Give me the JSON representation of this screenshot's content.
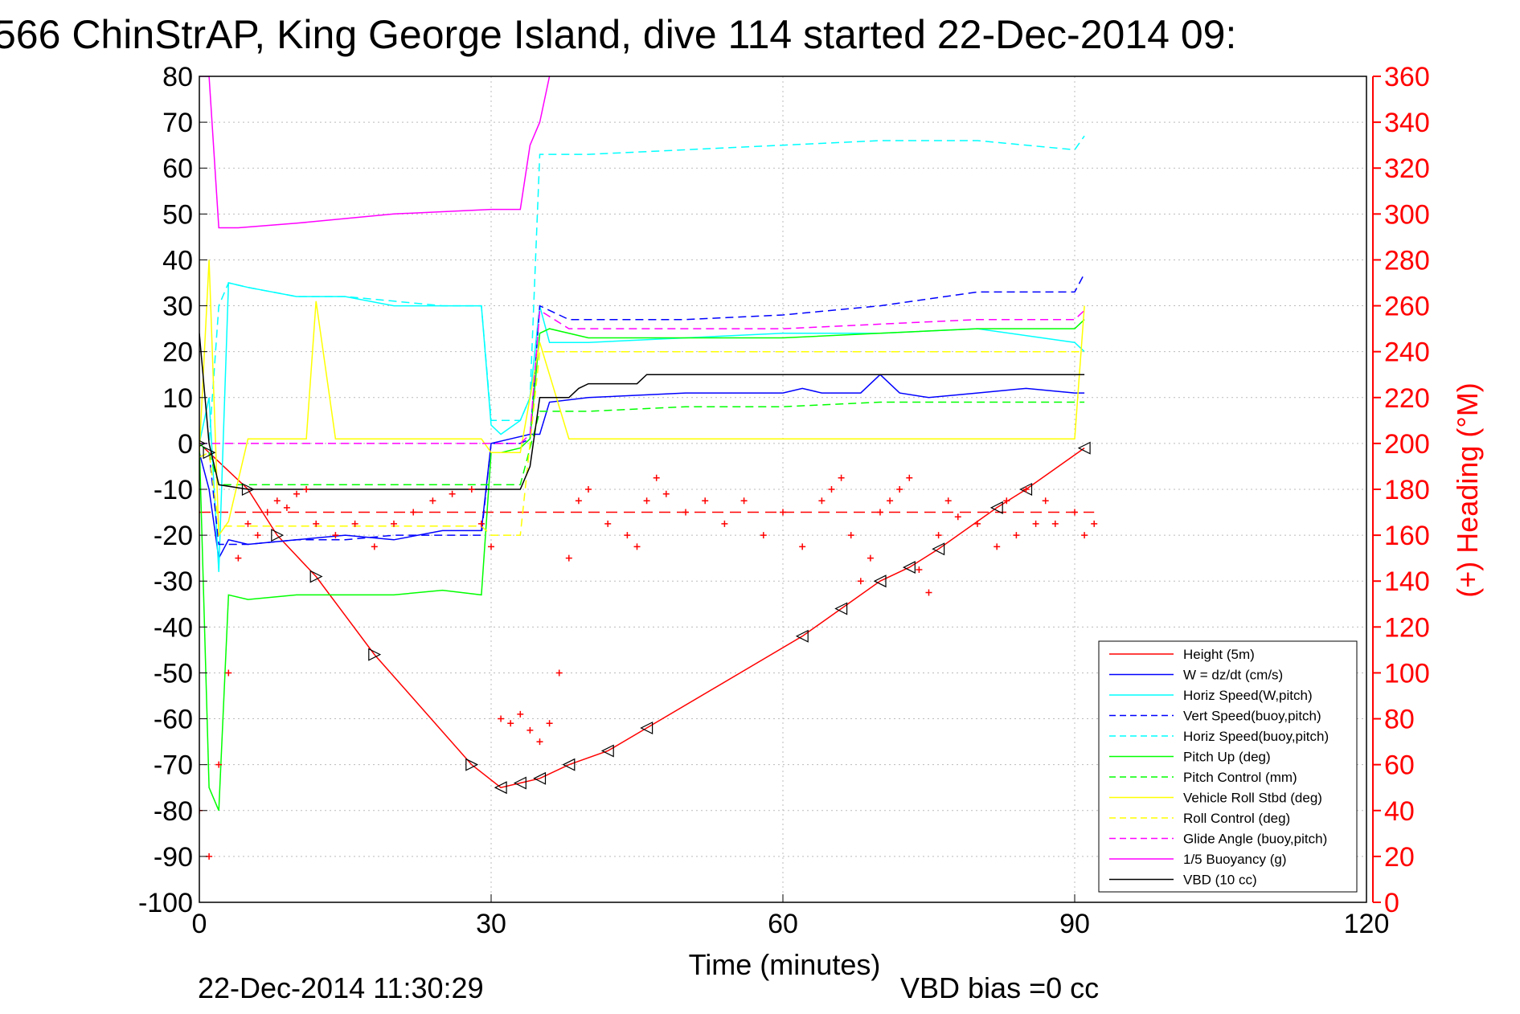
{
  "chart_data": {
    "type": "line",
    "title": "566 ChinStrAP, King George Island, dive 114 started 22-Dec-2014 09:",
    "xlabel": "Time (minutes)",
    "ylabel_right": "(+) Heading (°M)",
    "footer_left": "22-Dec-2014 11:30:29",
    "footer_right": "VBD bias =0 cc",
    "xlim": [
      0,
      120
    ],
    "ylim": [
      -100,
      80
    ],
    "ylim_right": [
      0,
      360
    ],
    "xticks": [
      "0",
      "30",
      "60",
      "90",
      "120"
    ],
    "yticks": [
      "80",
      "70",
      "60",
      "50",
      "40",
      "30",
      "20",
      "10",
      "0",
      "-10",
      "-20",
      "-30",
      "-40",
      "-50",
      "-60",
      "-70",
      "-80",
      "-90",
      "-100"
    ],
    "yticks_right": [
      "360",
      "340",
      "320",
      "300",
      "280",
      "260",
      "240",
      "220",
      "200",
      "180",
      "160",
      "140",
      "120",
      "100",
      "80",
      "60",
      "40",
      "20",
      "0"
    ],
    "grid": true,
    "legend_position": "bottom-right",
    "colors": {
      "red": "#ff0000",
      "blue": "#0000ff",
      "cyan": "#00ffff",
      "green": "#00ff00",
      "yellow": "#ffff00",
      "magenta": "#ff00ff",
      "black": "#000000"
    },
    "series": [
      {
        "name": "Height (5m)",
        "color": "#ff0000",
        "dash": "solid",
        "x": [
          0,
          1,
          5,
          8,
          12,
          18,
          28,
          31,
          33,
          35,
          38,
          42,
          46,
          62,
          66,
          70,
          73,
          76,
          82,
          85,
          91
        ],
        "y": [
          0,
          -2,
          -10,
          -20,
          -29,
          -46,
          -70,
          -75,
          -74,
          -73,
          -70,
          -67,
          -62,
          -42,
          -36,
          -30,
          -27,
          -23,
          -14,
          -10,
          -1
        ]
      },
      {
        "name": "W = dz/dt (cm/s)",
        "color": "#0000ff",
        "dash": "solid",
        "x": [
          0,
          1,
          2,
          3,
          5,
          10,
          15,
          20,
          25,
          29,
          30,
          32,
          34,
          35,
          36,
          40,
          50,
          60,
          62,
          64,
          68,
          70,
          72,
          75,
          80,
          85,
          90,
          91
        ],
        "y": [
          -2,
          -10,
          -25,
          -21,
          -22,
          -21,
          -20,
          -21,
          -19,
          -19,
          0,
          1,
          2,
          2,
          9,
          10,
          11,
          11,
          12,
          11,
          11,
          15,
          11,
          10,
          11,
          12,
          11,
          11
        ]
      },
      {
        "name": "Horiz Speed(W,pitch)",
        "color": "#00ffff",
        "dash": "solid",
        "x": [
          0,
          1,
          2,
          3,
          5,
          10,
          15,
          20,
          25,
          29,
          30,
          31,
          33,
          34,
          35,
          36,
          40,
          50,
          60,
          70,
          80,
          90,
          91
        ],
        "y": [
          0,
          10,
          -28,
          35,
          34,
          32,
          32,
          30,
          30,
          30,
          4,
          2,
          5,
          10,
          30,
          22,
          22,
          23,
          24,
          24,
          25,
          22,
          20
        ]
      },
      {
        "name": "Vert Speed(buoy,pitch)",
        "color": "#0000ff",
        "dash": "dashed",
        "x": [
          0,
          1,
          2,
          5,
          10,
          15,
          20,
          25,
          29,
          30,
          33,
          34,
          35,
          38,
          40,
          50,
          60,
          70,
          80,
          90,
          91
        ],
        "y": [
          0,
          -2,
          -22,
          -22,
          -21,
          -21,
          -20,
          -20,
          -20,
          0,
          0,
          1,
          30,
          27,
          27,
          27,
          28,
          30,
          33,
          33,
          37
        ]
      },
      {
        "name": "Horiz Speed(buoy,pitch)",
        "color": "#00ffff",
        "dash": "dashed",
        "x": [
          0,
          1,
          2,
          3,
          5,
          10,
          15,
          20,
          25,
          29,
          30,
          33,
          34,
          35,
          40,
          50,
          60,
          70,
          80,
          90,
          91
        ],
        "y": [
          0,
          0,
          30,
          35,
          34,
          32,
          32,
          31,
          30,
          30,
          5,
          5,
          10,
          63,
          63,
          64,
          65,
          66,
          66,
          64,
          67
        ]
      },
      {
        "name": "Pitch Up (deg)",
        "color": "#00ff00",
        "dash": "solid",
        "x": [
          0,
          1,
          2,
          3,
          5,
          10,
          15,
          20,
          25,
          29,
          30,
          31,
          33,
          34,
          35,
          36,
          40,
          50,
          60,
          70,
          80,
          90,
          91
        ],
        "y": [
          0,
          -75,
          -80,
          -33,
          -34,
          -33,
          -33,
          -33,
          -32,
          -33,
          -2,
          -2,
          -1,
          1,
          24,
          25,
          23,
          23,
          23,
          24,
          25,
          25,
          27
        ]
      },
      {
        "name": "Pitch Control (mm)",
        "color": "#00ff00",
        "dash": "dashed",
        "x": [
          0,
          1,
          2,
          5,
          10,
          20,
          28,
          30,
          33,
          34,
          35,
          36,
          40,
          50,
          60,
          70,
          80,
          90,
          91
        ],
        "y": [
          0,
          -2,
          -9,
          -9,
          -9,
          -9,
          -9,
          -9,
          -9,
          -1,
          7,
          7,
          7,
          8,
          8,
          9,
          9,
          9,
          9
        ]
      },
      {
        "name": "Vehicle Roll Stbd (deg)",
        "color": "#ffff00",
        "dash": "solid",
        "x": [
          0,
          1,
          2,
          3,
          5,
          8,
          11,
          12,
          14,
          20,
          25,
          29,
          30,
          33,
          35,
          38,
          40,
          50,
          60,
          70,
          80,
          90,
          91
        ],
        "y": [
          -2,
          40,
          -20,
          -17,
          1,
          1,
          1,
          31,
          1,
          1,
          1,
          1,
          -2,
          -2,
          22,
          1,
          1,
          1,
          1,
          1,
          1,
          1,
          30
        ]
      },
      {
        "name": "Roll Control (deg)",
        "color": "#ffff00",
        "dash": "dashed",
        "x": [
          0,
          1,
          2,
          3,
          5,
          10,
          15,
          20,
          25,
          29,
          30,
          33,
          35,
          40,
          50,
          60,
          70,
          80,
          90,
          91
        ],
        "y": [
          -3,
          -2,
          -18,
          -18,
          -18,
          -18,
          -18,
          -18,
          -18,
          -18,
          -20,
          -20,
          20,
          20,
          20,
          20,
          20,
          20,
          20,
          20
        ]
      },
      {
        "name": "Glide Angle (buoy,pitch)",
        "color": "#ff00ff",
        "dash": "dashed",
        "x": [
          0,
          30,
          33,
          34,
          35,
          38,
          40,
          50,
          60,
          70,
          80,
          90,
          91
        ],
        "y": [
          0,
          0,
          0,
          2,
          29,
          25,
          25,
          25,
          25,
          26,
          27,
          27,
          29
        ]
      },
      {
        "name": "1/5 Buoyancy (g)",
        "color": "#ff00ff",
        "dash": "solid",
        "x": [
          0,
          1,
          2,
          4,
          10,
          20,
          30,
          33,
          34,
          35,
          36
        ],
        "y": [
          80,
          80,
          47,
          47,
          48,
          50,
          51,
          51,
          65,
          70,
          80
        ]
      },
      {
        "name": "VBD (10 cc)",
        "color": "#000000",
        "dash": "solid",
        "x": [
          0,
          1,
          2,
          5,
          10,
          20,
          25,
          30,
          33,
          34,
          35,
          38,
          39,
          40,
          45,
          46,
          60,
          70,
          80,
          90,
          91
        ],
        "y": [
          24,
          0,
          -9,
          -10,
          -10,
          -10,
          -10,
          -10,
          -10,
          -5,
          10,
          10,
          12,
          13,
          13,
          15,
          15,
          15,
          15,
          15,
          15
        ]
      }
    ],
    "heading": {
      "label": "Heading (°M)",
      "color": "#ff0000",
      "axis": "right",
      "x": [
        0,
        1,
        2,
        3,
        4,
        5,
        6,
        7,
        8,
        9,
        10,
        11,
        12,
        14,
        16,
        18,
        20,
        22,
        24,
        26,
        28,
        29,
        30,
        31,
        32,
        33,
        34,
        35,
        36,
        37,
        38,
        39,
        40,
        42,
        44,
        45,
        46,
        47,
        48,
        50,
        52,
        54,
        56,
        58,
        60,
        62,
        64,
        65,
        66,
        67,
        68,
        69,
        70,
        71,
        72,
        73,
        74,
        75,
        76,
        77,
        78,
        80,
        82,
        83,
        84,
        85,
        86,
        87,
        88,
        90,
        91,
        92
      ],
      "y": [
        40,
        20,
        60,
        100,
        150,
        165,
        160,
        170,
        175,
        172,
        178,
        180,
        165,
        160,
        165,
        155,
        165,
        170,
        175,
        178,
        180,
        165,
        155,
        80,
        78,
        82,
        75,
        70,
        78,
        100,
        150,
        175,
        180,
        165,
        160,
        155,
        175,
        185,
        178,
        170,
        175,
        165,
        175,
        160,
        170,
        155,
        175,
        180,
        185,
        160,
        140,
        150,
        170,
        175,
        180,
        185,
        145,
        135,
        160,
        175,
        168,
        165,
        155,
        175,
        160,
        180,
        165,
        175,
        165,
        170,
        160,
        165
      ]
    },
    "heading_mean": 170,
    "heading_target": 170
  }
}
